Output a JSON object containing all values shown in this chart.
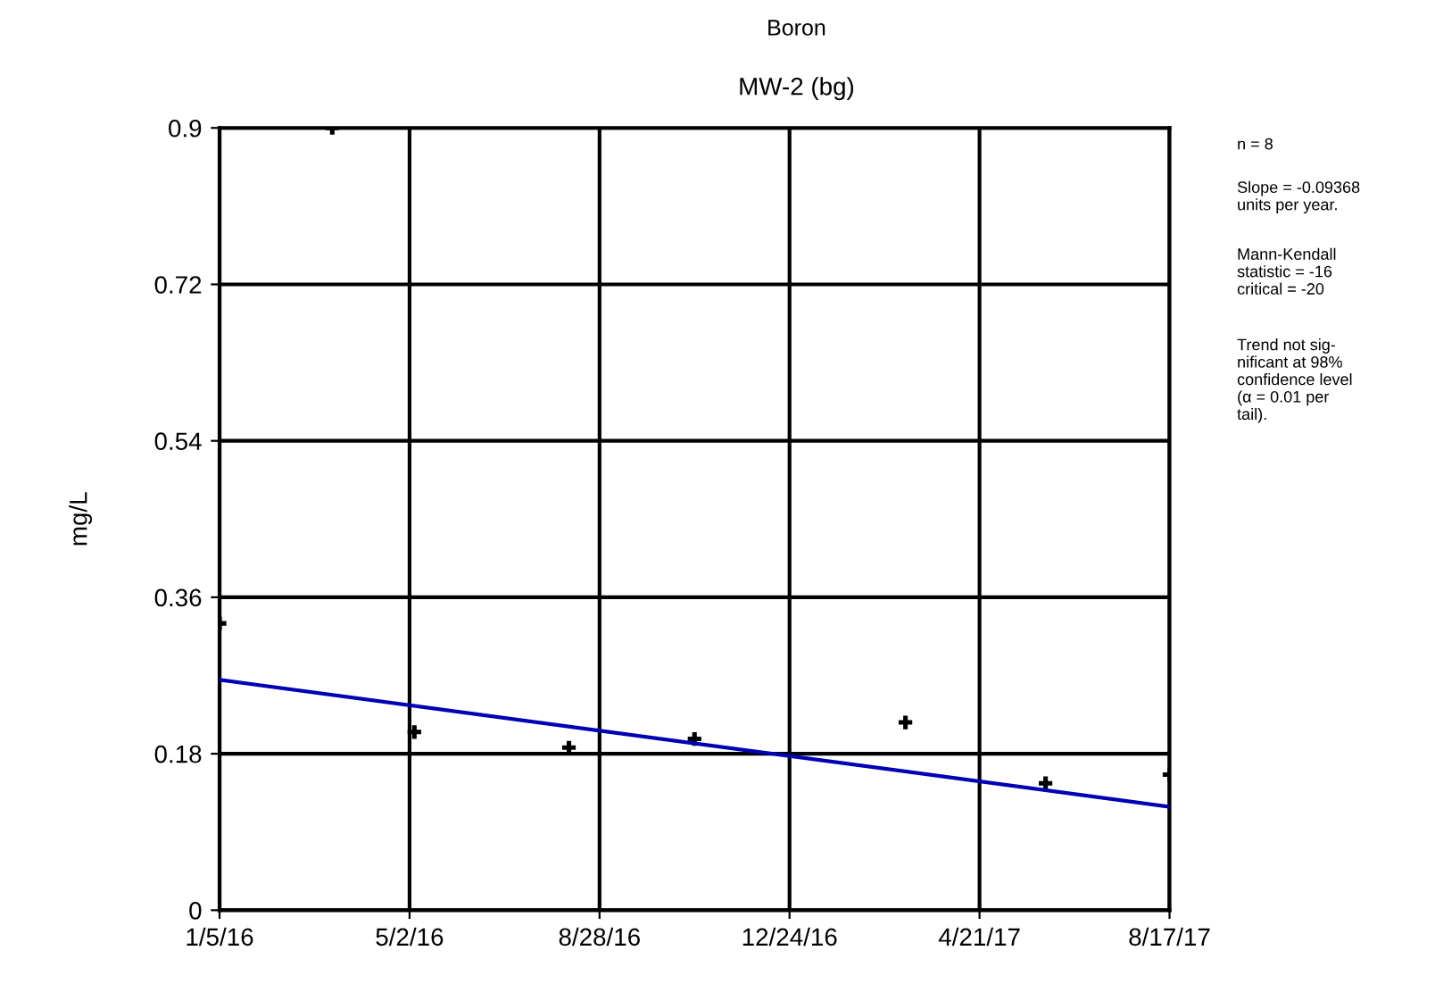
{
  "chart_data": {
    "type": "scatter",
    "title": "Boron",
    "subtitle": "MW-2 (bg)",
    "ylabel": "mg/L",
    "xlim": [
      "2016-01-05",
      "2017-08-17"
    ],
    "xticks": [
      {
        "value": "2016-01-05",
        "label": "1/5/16"
      },
      {
        "value": "2016-05-02",
        "label": "5/2/16"
      },
      {
        "value": "2016-08-28",
        "label": "8/28/16"
      },
      {
        "value": "2016-12-24",
        "label": "12/24/16"
      },
      {
        "value": "2017-04-21",
        "label": "4/21/17"
      },
      {
        "value": "2017-08-17",
        "label": "8/17/17"
      }
    ],
    "ylim": [
      0,
      0.9
    ],
    "yticks": [
      0,
      0.18,
      0.36,
      0.54,
      0.72,
      0.9
    ],
    "grid": true,
    "marker": "cross",
    "series": [
      {
        "color": "#000000",
        "x": [
          "2016-01-05",
          "2016-03-15",
          "2016-05-05",
          "2016-08-09",
          "2016-10-26",
          "2017-03-06",
          "2017-06-01",
          "2017-08-17"
        ],
        "values": [
          0.33,
          0.9,
          0.205,
          0.187,
          0.197,
          0.216,
          0.146,
          0.156
        ]
      },
      {
        "type": "line",
        "color": "#0000b4",
        "line_style": "solid",
        "marker": "none",
        "x": [
          "2016-01-05",
          "2017-08-17"
        ],
        "values": [
          0.265,
          0.119
        ]
      }
    ],
    "annotations": [
      "n = 8",
      "Slope = -0.09368\nunits per year.",
      "Mann-Kendall\nstatistic = -16\ncritical = -20",
      "Trend not sig-\nnificant at 98%\nconfidence level\n(α = 0.01 per\ntail)."
    ]
  }
}
